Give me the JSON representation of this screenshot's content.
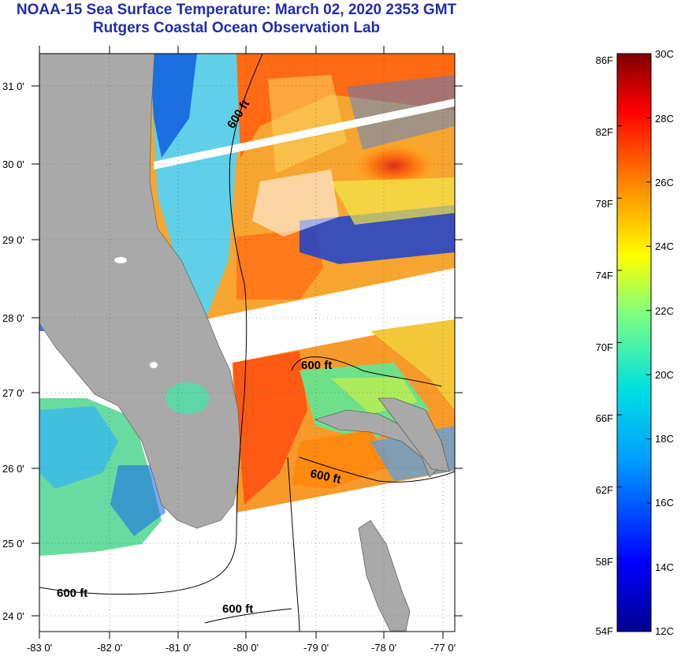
{
  "title": "NOAA-15 Sea Surface Temperature:  March 02, 2020 2353 GMT",
  "subtitle": "Rutgers Coastal Ocean Observation Lab",
  "map": {
    "lat_ticks": [
      "31 0'",
      "30 0'",
      "29 0'",
      "28 0'",
      "27 0'",
      "26 0'",
      "25 0'",
      "24 0'"
    ],
    "lon_ticks": [
      "-83 0'",
      "-82 0'",
      "-81 0'",
      "-80 0'",
      "-79 0'",
      "-78 0'",
      "-77 0'"
    ],
    "contour_labels": [
      "600 ft",
      "600 ft",
      "600 ft",
      "600 ft",
      "600 ft"
    ],
    "colors": {
      "land": "#a9a9a9",
      "no_data": "#ffffff",
      "contour": "#000000"
    }
  },
  "colorbar": {
    "fahrenheit_labels": [
      "86F",
      "82F",
      "78F",
      "74F",
      "70F",
      "66F",
      "62F",
      "58F",
      "54F"
    ],
    "celsius_labels": [
      "30C",
      "28C",
      "26C",
      "24C",
      "22C",
      "20C",
      "18C",
      "16C",
      "14C",
      "12C"
    ],
    "colors": {
      "min": "#00008f",
      "max": "#800000"
    }
  }
}
